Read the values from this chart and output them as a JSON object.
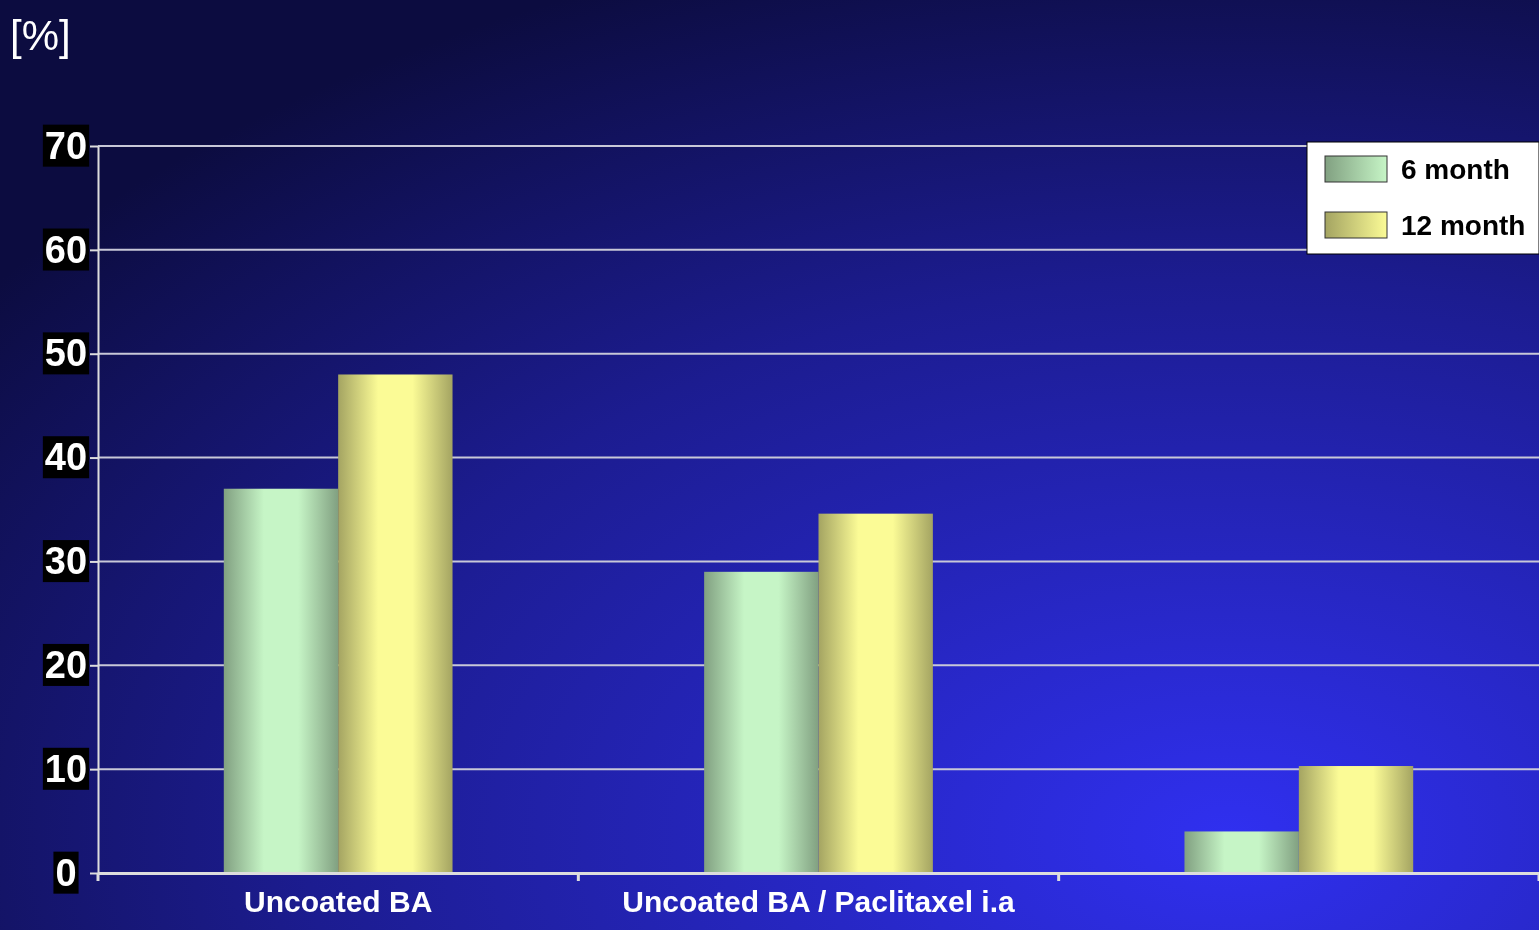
{
  "chart_data": {
    "type": "bar",
    "ylabel": "[%]",
    "categories": [
      "Uncoated BA",
      "Uncoated BA / Paclitaxel i.a",
      null
    ],
    "series": [
      {
        "name": "6 month",
        "color": "#c6f5c6",
        "values": [
          37,
          29,
          4
        ]
      },
      {
        "name": "12 month",
        "color": "#fbfb96",
        "values": [
          48,
          34.6,
          10.3
        ]
      }
    ],
    "ylim": [
      0,
      70
    ],
    "yticks": [
      0,
      10,
      20,
      30,
      40,
      50,
      60,
      70
    ],
    "grid": "y",
    "legend": "top right"
  }
}
